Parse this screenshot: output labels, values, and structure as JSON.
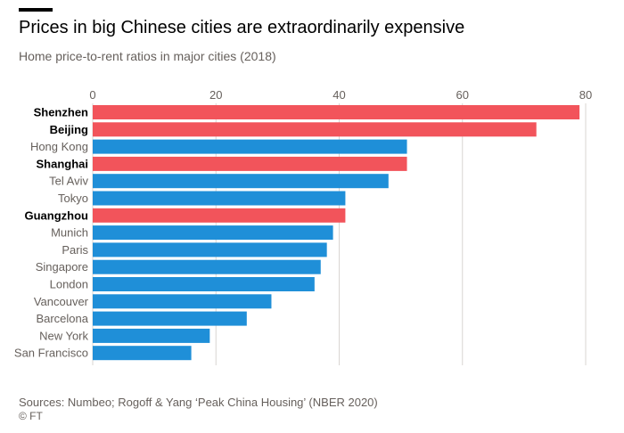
{
  "header": {
    "title": "Prices in big Chinese cities are extraordinarily expensive",
    "subtitle": "Home price-to-rent ratios in major cities (2018)"
  },
  "footer": {
    "source": "Sources: Numbeo; Rogoff & Yang ‘Peak China Housing’ (NBER 2020)",
    "credit": "© FT"
  },
  "colors": {
    "highlight": "#f2545b",
    "default": "#1f8fd8",
    "gridline": "#d9d5d2"
  },
  "chart_data": {
    "type": "bar",
    "orientation": "horizontal",
    "title": "Prices in big Chinese cities are extraordinarily expensive",
    "subtitle": "Home price-to-rent ratios in major cities (2018)",
    "xlabel": "",
    "ylabel": "",
    "xlim": [
      0,
      80
    ],
    "xticks": [
      0,
      20,
      40,
      60,
      80
    ],
    "tick_position": "top",
    "grid": true,
    "categories": [
      "Shenzhen",
      "Beijing",
      "Hong Kong",
      "Shanghai",
      "Tel Aviv",
      "Tokyo",
      "Guangzhou",
      "Munich",
      "Paris",
      "Singapore",
      "London",
      "Vancouver",
      "Barcelona",
      "New York",
      "San Francisco"
    ],
    "values": [
      79,
      72,
      51,
      51,
      48,
      41,
      41,
      39,
      38,
      37,
      36,
      29,
      25,
      19,
      16
    ],
    "highlighted": [
      true,
      true,
      false,
      true,
      false,
      false,
      true,
      false,
      false,
      false,
      false,
      false,
      false,
      false,
      false
    ]
  }
}
